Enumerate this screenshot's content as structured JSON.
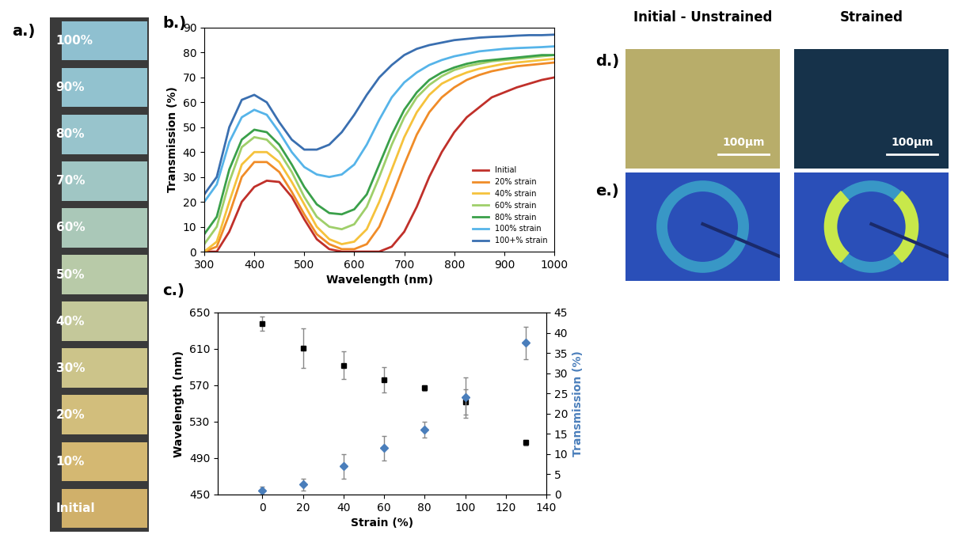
{
  "chart_data": [
    {
      "type": "line",
      "title": "b.)",
      "x_label": "Wavelength (nm)",
      "y_label": "Transmission (%)",
      "x": [
        300,
        325,
        350,
        375,
        400,
        425,
        450,
        475,
        500,
        525,
        550,
        575,
        600,
        625,
        650,
        675,
        700,
        725,
        750,
        775,
        800,
        825,
        850,
        875,
        900,
        925,
        950,
        975,
        1000
      ],
      "xlim": [
        300,
        1000
      ],
      "xticks": [
        300,
        400,
        500,
        600,
        700,
        800,
        900,
        1000
      ],
      "ylim": [
        0,
        90
      ],
      "yticks": [
        0,
        10,
        20,
        30,
        40,
        50,
        60,
        70,
        80,
        90
      ],
      "legend": "lower right",
      "grid": false,
      "series": [
        {
          "name": "Initial",
          "color": "#c0302a",
          "values": [
            0,
            0,
            8,
            20,
            26,
            28.5,
            28,
            22,
            13,
            5,
            1,
            0,
            0,
            0,
            0,
            2,
            8,
            18,
            30,
            40,
            48,
            54,
            58,
            62,
            64,
            66,
            67.5,
            69,
            70
          ]
        },
        {
          "name": "20% strain",
          "color": "#f08c28",
          "values": [
            0,
            2,
            15,
            30,
            36,
            36,
            32,
            24,
            15,
            7,
            3,
            1,
            1,
            3,
            10,
            22,
            35,
            47,
            56,
            62,
            66,
            69,
            71,
            72.5,
            73.5,
            74.5,
            75,
            75.5,
            76
          ]
        },
        {
          "name": "40% strain",
          "color": "#f5c23c",
          "values": [
            0,
            4,
            20,
            35,
            40,
            40,
            36,
            28,
            19,
            10,
            5,
            3,
            4,
            9,
            20,
            33,
            46,
            56,
            63,
            67.5,
            70,
            72,
            73.5,
            74.5,
            75.5,
            76,
            76.5,
            77,
            77.5
          ]
        },
        {
          "name": "60% strain",
          "color": "#9fcf6a",
          "values": [
            3,
            10,
            28,
            42,
            46,
            45,
            40,
            32,
            22,
            14,
            10,
            9,
            11,
            18,
            30,
            43,
            54,
            62,
            67,
            70.5,
            73,
            74.5,
            75.5,
            76.5,
            77,
            77.5,
            78,
            78.5,
            79
          ]
        },
        {
          "name": "80% strain",
          "color": "#3aa04a",
          "values": [
            7,
            14,
            33,
            45,
            49,
            48,
            43,
            35,
            26,
            19,
            15.5,
            15,
            17,
            23,
            35,
            47,
            57,
            64,
            69,
            72,
            74,
            75.5,
            76.5,
            77,
            77.5,
            78,
            78.5,
            79,
            79
          ]
        },
        {
          "name": "100% strain",
          "color": "#56b4e9",
          "values": [
            20,
            27,
            44,
            54,
            57,
            55,
            48,
            40,
            34,
            31,
            30,
            31,
            35,
            43,
            53,
            62,
            68,
            72,
            75,
            77,
            78.5,
            79.5,
            80.5,
            81,
            81.5,
            81.8,
            82,
            82.2,
            82.5
          ]
        },
        {
          "name": "100+% strain",
          "color": "#3a6fb0",
          "values": [
            23,
            30,
            50,
            61,
            63,
            60,
            52,
            45,
            41,
            41,
            43,
            48,
            55,
            63,
            70,
            75,
            79,
            81.5,
            83,
            84,
            85,
            85.5,
            86,
            86.3,
            86.5,
            86.8,
            87,
            87,
            87.2
          ]
        }
      ]
    },
    {
      "type": "scatter",
      "title": "c.)",
      "x_label": "Strain (%)",
      "y_label": "Wavelength (nm)",
      "y2_label": "Transmission (%)",
      "x": [
        0,
        20,
        40,
        60,
        80,
        100,
        130
      ],
      "xlim": [
        -22,
        140
      ],
      "xticks": [
        0,
        20,
        40,
        60,
        80,
        100,
        120,
        140
      ],
      "ylim": [
        450,
        650
      ],
      "yticks": [
        450,
        490,
        530,
        570,
        610,
        650
      ],
      "y2lim": [
        0,
        45
      ],
      "y2ticks": [
        0,
        5,
        10,
        15,
        20,
        25,
        30,
        35,
        40,
        45
      ],
      "series": [
        {
          "name": "Wavelength",
          "axis": "y",
          "color": "#000000",
          "marker": "square",
          "values": [
            638,
            611,
            592,
            576,
            567,
            552,
            507
          ],
          "errors": [
            8,
            22,
            15,
            14,
            3,
            14,
            3
          ]
        },
        {
          "name": "Transmission",
          "axis": "y2",
          "color": "#4a7ebb",
          "marker": "diamond",
          "values": [
            1,
            2.5,
            7,
            11.5,
            16,
            24,
            37.5
          ],
          "errors": [
            1,
            1.5,
            3,
            3,
            2,
            5,
            4
          ]
        }
      ]
    }
  ],
  "panel_a": {
    "label": "a.)",
    "strips": [
      "100%",
      "90%",
      "80%",
      "70%",
      "60%",
      "50%",
      "40%",
      "30%",
      "20%",
      "10%",
      "Initial"
    ],
    "colors": [
      "#8fc0d0",
      "#92c2cf",
      "#98c4cc",
      "#a0c6c4",
      "#aac8b8",
      "#b8caa8",
      "#c4c89a",
      "#ccc48a",
      "#d2be7c",
      "#d4b872",
      "#d0b06a"
    ]
  },
  "panel_d": {
    "label": "d.)",
    "columns": [
      "Initial - Unstrained",
      "Strained"
    ],
    "scale_bar": "100μm",
    "colors": [
      "#b8ad6a",
      "#16324a"
    ]
  },
  "panel_e": {
    "label": "e.)"
  }
}
